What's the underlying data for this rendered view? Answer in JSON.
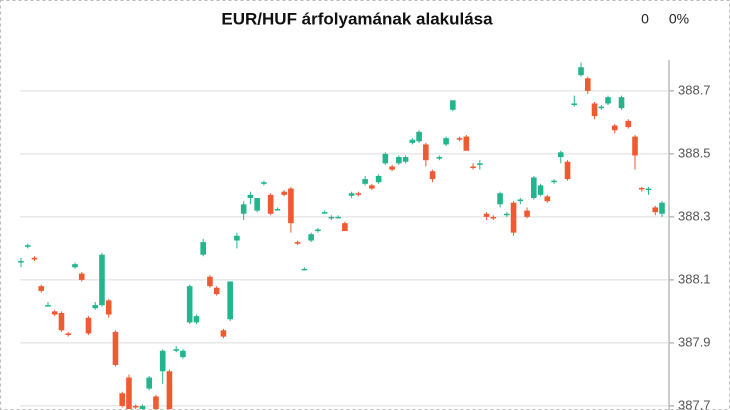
{
  "chart_data": {
    "type": "candlestick",
    "title": "EUR/HUF árfolyamának alakulása",
    "annotations": [
      "0",
      "0%"
    ],
    "up_color": "#22b58e",
    "down_color": "#f05a32",
    "grid": true,
    "ylim": [
      387.687,
      388.798
    ],
    "yticks": [
      387.7,
      387.9,
      388.1,
      388.3,
      388.5,
      388.7
    ],
    "open": [
      388.155,
      388.205,
      388.17,
      388.08,
      388.02,
      388.0,
      387.995,
      387.93,
      388.14,
      388.12,
      387.98,
      388.01,
      388.02,
      388.035,
      387.935,
      387.74,
      387.79,
      387.7,
      387.69,
      387.755,
      387.73,
      387.81,
      387.81,
      387.875,
      387.855,
      387.965,
      387.965,
      388.18,
      388.11,
      388.075,
      387.94,
      387.975,
      388.225,
      388.31,
      388.36,
      388.32,
      388.405,
      388.37,
      388.325,
      388.38,
      388.39,
      388.22,
      388.135,
      388.225,
      388.255,
      388.315,
      388.3,
      388.3,
      388.28,
      388.367,
      388.375,
      388.405,
      388.4,
      388.41,
      388.47,
      388.46,
      388.47,
      388.475,
      388.535,
      388.54,
      388.53,
      388.445,
      388.485,
      388.53,
      388.64,
      388.55,
      388.555,
      388.46,
      388.465,
      388.31,
      388.3,
      388.34,
      388.31,
      388.345,
      388.35,
      388.32,
      388.36,
      388.37,
      388.365,
      388.41,
      388.49,
      388.475,
      388.655,
      388.75,
      388.74,
      388.66,
      388.645,
      388.66,
      388.59,
      388.645,
      388.605,
      388.555,
      388.392,
      388.385,
      388.33,
      388.31
    ],
    "high": [
      388.17,
      388.215,
      388.175,
      388.085,
      388.03,
      388.005,
      388.0,
      387.935,
      388.155,
      388.125,
      387.985,
      388.03,
      388.185,
      388.04,
      387.94,
      387.745,
      387.8,
      387.705,
      387.705,
      387.795,
      387.735,
      387.88,
      387.815,
      387.89,
      387.88,
      388.085,
      387.99,
      388.23,
      388.115,
      388.08,
      387.945,
      388.095,
      388.25,
      388.35,
      388.38,
      388.36,
      388.415,
      388.375,
      388.33,
      388.385,
      388.395,
      388.225,
      388.14,
      388.25,
      388.265,
      388.32,
      388.305,
      388.305,
      388.285,
      388.38,
      388.38,
      388.43,
      388.405,
      388.435,
      388.505,
      388.465,
      388.495,
      388.495,
      388.55,
      388.575,
      388.535,
      388.45,
      388.495,
      388.555,
      388.67,
      388.555,
      388.56,
      388.47,
      388.48,
      388.315,
      388.305,
      388.38,
      388.315,
      388.35,
      388.36,
      388.33,
      388.43,
      388.405,
      388.37,
      388.42,
      388.51,
      388.48,
      388.685,
      388.79,
      388.745,
      388.665,
      388.655,
      388.685,
      388.595,
      388.685,
      388.61,
      388.56,
      388.395,
      388.395,
      388.335,
      388.35
    ],
    "low": [
      388.14,
      388.2,
      388.16,
      388.06,
      388.015,
      387.985,
      387.935,
      387.92,
      388.135,
      388.095,
      387.925,
      388.005,
      388.015,
      387.98,
      387.825,
      387.695,
      387.69,
      387.69,
      387.688,
      387.75,
      387.69,
      387.77,
      387.69,
      387.87,
      387.85,
      387.96,
      387.96,
      388.175,
      388.075,
      388.05,
      387.915,
      387.97,
      388.2,
      388.29,
      388.34,
      388.315,
      388.4,
      388.305,
      388.32,
      388.365,
      388.25,
      388.21,
      388.13,
      388.22,
      388.25,
      388.31,
      388.29,
      388.295,
      388.255,
      388.36,
      388.365,
      388.4,
      388.385,
      388.405,
      388.465,
      388.445,
      388.465,
      388.47,
      388.53,
      388.535,
      388.46,
      388.41,
      388.48,
      388.525,
      388.635,
      388.54,
      388.51,
      388.45,
      388.45,
      388.29,
      388.29,
      388.33,
      388.3,
      388.24,
      388.34,
      388.295,
      388.355,
      388.365,
      388.345,
      388.405,
      388.47,
      388.415,
      388.65,
      388.745,
      388.69,
      388.61,
      388.64,
      388.655,
      388.565,
      388.64,
      388.58,
      388.45,
      388.38,
      388.37,
      388.305,
      388.3
    ],
    "close": [
      388.16,
      388.21,
      388.165,
      388.065,
      388.02,
      387.99,
      387.94,
      387.925,
      388.15,
      388.1,
      387.93,
      388.02,
      388.18,
      387.99,
      387.83,
      387.7,
      387.69,
      387.695,
      387.7,
      387.79,
      387.69,
      387.875,
      387.69,
      387.88,
      387.875,
      388.08,
      387.985,
      388.22,
      388.08,
      388.055,
      387.92,
      388.095,
      388.24,
      388.34,
      388.37,
      388.36,
      388.41,
      388.31,
      388.325,
      388.37,
      388.28,
      388.215,
      388.135,
      388.245,
      388.26,
      388.315,
      388.3,
      388.3,
      388.255,
      388.375,
      388.37,
      388.42,
      388.39,
      388.43,
      388.5,
      388.45,
      388.49,
      388.49,
      388.545,
      388.57,
      388.48,
      388.42,
      388.49,
      388.55,
      388.67,
      388.545,
      388.51,
      388.455,
      388.47,
      388.3,
      388.295,
      388.375,
      388.31,
      388.25,
      388.355,
      388.3,
      388.425,
      388.4,
      388.35,
      388.415,
      388.505,
      388.42,
      388.66,
      388.775,
      388.7,
      388.62,
      388.65,
      388.68,
      388.575,
      388.68,
      388.585,
      388.495,
      388.388,
      388.39,
      388.315,
      388.345
    ]
  }
}
